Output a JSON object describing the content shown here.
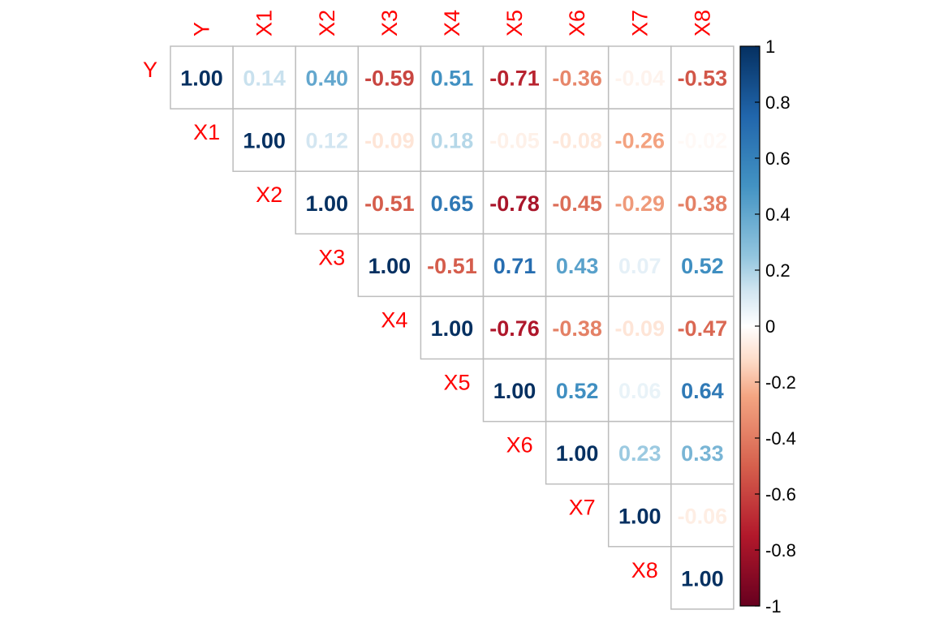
{
  "chart_data": {
    "type": "heatmap",
    "subtype": "correlation-matrix-upper-triangle",
    "variables": [
      "Y",
      "X1",
      "X2",
      "X3",
      "X4",
      "X5",
      "X6",
      "X7",
      "X8"
    ],
    "matrix": [
      [
        1.0,
        0.14,
        0.4,
        -0.59,
        0.51,
        -0.71,
        -0.36,
        -0.04,
        -0.53
      ],
      [
        null,
        1.0,
        0.12,
        -0.09,
        0.18,
        -0.05,
        -0.08,
        -0.26,
        -0.02
      ],
      [
        null,
        null,
        1.0,
        -0.51,
        0.65,
        -0.78,
        -0.45,
        -0.29,
        -0.38
      ],
      [
        null,
        null,
        null,
        1.0,
        -0.51,
        0.71,
        0.43,
        0.07,
        0.52
      ],
      [
        null,
        null,
        null,
        null,
        1.0,
        -0.76,
        -0.38,
        -0.09,
        -0.47
      ],
      [
        null,
        null,
        null,
        null,
        null,
        1.0,
        0.52,
        0.06,
        0.64
      ],
      [
        null,
        null,
        null,
        null,
        null,
        null,
        1.0,
        0.23,
        0.33
      ],
      [
        null,
        null,
        null,
        null,
        null,
        null,
        null,
        1.0,
        -0.06
      ],
      [
        null,
        null,
        null,
        null,
        null,
        null,
        null,
        null,
        1.0
      ]
    ],
    "value_labels": [
      [
        "1.00",
        "0.14",
        "0.40",
        "-0.59",
        "0.51",
        "-0.71",
        "-0.36",
        "-0.04",
        "-0.53"
      ],
      [
        null,
        "1.00",
        "0.12",
        "-0.09",
        "0.18",
        "-0.05",
        "-0.08",
        "-0.26",
        "-0.02"
      ],
      [
        null,
        null,
        "1.00",
        "-0.51",
        "0.65",
        "-0.78",
        "-0.45",
        "-0.29",
        "-0.38"
      ],
      [
        null,
        null,
        null,
        "1.00",
        "-0.51",
        "0.71",
        "0.43",
        "0.07",
        "0.52"
      ],
      [
        null,
        null,
        null,
        null,
        "1.00",
        "-0.76",
        "-0.38",
        "-0.09",
        "-0.47"
      ],
      [
        null,
        null,
        null,
        null,
        null,
        "1.00",
        "0.52",
        "0.06",
        "0.64"
      ],
      [
        null,
        null,
        null,
        null,
        null,
        null,
        "1.00",
        "0.23",
        "0.33"
      ],
      [
        null,
        null,
        null,
        null,
        null,
        null,
        null,
        "1.00",
        "-0.06"
      ],
      [
        null,
        null,
        null,
        null,
        null,
        null,
        null,
        null,
        "1.00"
      ]
    ],
    "color_scale": {
      "range": [
        -1,
        1
      ],
      "stops": [
        {
          "value": -1.0,
          "color": "#67001F"
        },
        {
          "value": -0.75,
          "color": "#B2182B"
        },
        {
          "value": -0.5,
          "color": "#D6604D"
        },
        {
          "value": -0.25,
          "color": "#F4A582"
        },
        {
          "value": -0.125,
          "color": "#FDDBC7"
        },
        {
          "value": 0.0,
          "color": "#FFFFFF"
        },
        {
          "value": 0.125,
          "color": "#D1E5F0"
        },
        {
          "value": 0.25,
          "color": "#92C5DE"
        },
        {
          "value": 0.5,
          "color": "#4393C3"
        },
        {
          "value": 0.75,
          "color": "#2166AC"
        },
        {
          "value": 1.0,
          "color": "#053061"
        }
      ]
    },
    "colorbar_ticks": [
      {
        "value": 1,
        "label": "1"
      },
      {
        "value": 0.8,
        "label": "0.8"
      },
      {
        "value": 0.6,
        "label": "0.6"
      },
      {
        "value": 0.4,
        "label": "0.4"
      },
      {
        "value": 0.2,
        "label": "0.2"
      },
      {
        "value": 0,
        "label": "0"
      },
      {
        "value": -0.2,
        "label": "-0.2"
      },
      {
        "value": -0.4,
        "label": "-0.4"
      },
      {
        "value": -0.6,
        "label": "-0.6"
      },
      {
        "value": -0.8,
        "label": "-0.8"
      },
      {
        "value": -1,
        "label": "-1"
      }
    ],
    "label_color": "#FF0000",
    "grid": true,
    "legend_position": "right"
  }
}
